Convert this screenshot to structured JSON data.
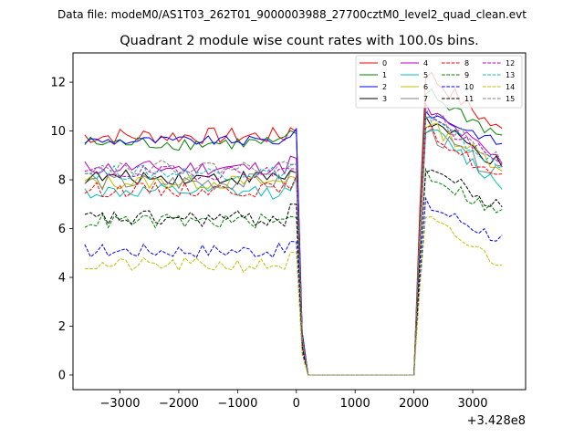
{
  "suptitle": "Data file: modeM0/AS1T03_262T01_9000003988_27700cztM0_level2_quad_clean.evt",
  "chart_data": {
    "type": "line",
    "title": "Quadrant 2 module wise count rates with 100.0s bins.",
    "xlabel": "",
    "ylabel": "",
    "x_offset_label": "+3.428e8",
    "xlim": [
      -3800,
      3900
    ],
    "ylim": [
      -0.6,
      13.2
    ],
    "xticks": [
      -3000,
      -2000,
      -1000,
      0,
      1000,
      2000,
      3000
    ],
    "xtick_labels": [
      "−3000",
      "−2000",
      "−1000",
      "0",
      "1000",
      "2000",
      "3000"
    ],
    "yticks": [
      0,
      2,
      4,
      6,
      8,
      10,
      12
    ],
    "ytick_labels": [
      "0",
      "2",
      "4",
      "6",
      "8",
      "10",
      "12"
    ],
    "legend_location": "top-right",
    "legend_columns": 4,
    "gap_start": 200,
    "gap_end": 2000,
    "x_start": -3600,
    "x_end": 3550,
    "bin_width": 100,
    "series": [
      {
        "name": "0",
        "color": "#ff0000",
        "dash": "solid",
        "pre": 9.8,
        "post_peak": 12.4,
        "post_end": 10.0,
        "noise": 0.35
      },
      {
        "name": "1",
        "color": "#008000",
        "dash": "solid",
        "pre": 9.5,
        "post_peak": 11.6,
        "post_end": 9.8,
        "noise": 0.3
      },
      {
        "name": "2",
        "color": "#0000ff",
        "dash": "solid",
        "pre": 9.6,
        "post_peak": 10.8,
        "post_end": 9.5,
        "noise": 0.2
      },
      {
        "name": "3",
        "color": "#000000",
        "dash": "solid",
        "pre": 8.1,
        "post_peak": 10.5,
        "post_end": 8.6,
        "noise": 0.3
      },
      {
        "name": "4",
        "color": "#bf00bf",
        "dash": "solid",
        "pre": 8.5,
        "post_peak": 10.9,
        "post_end": 8.8,
        "noise": 0.3
      },
      {
        "name": "5",
        "color": "#00bfbf",
        "dash": "solid",
        "pre": 7.5,
        "post_peak": 10.2,
        "post_end": 7.8,
        "noise": 0.3
      },
      {
        "name": "6",
        "color": "#bfbf00",
        "dash": "solid",
        "pre": 7.9,
        "post_peak": 10.3,
        "post_end": 8.6,
        "noise": 0.3
      },
      {
        "name": "7",
        "color": "#808080",
        "dash": "solid",
        "pre": 7.9,
        "post_peak": 10.0,
        "post_end": 8.2,
        "noise": 0.35
      },
      {
        "name": "8",
        "color": "#ff0000",
        "dash": "dashed",
        "pre": 7.6,
        "post_peak": 10.1,
        "post_end": 8.0,
        "noise": 0.3
      },
      {
        "name": "9",
        "color": "#008000",
        "dash": "dashed",
        "pre": 6.3,
        "post_peak": 8.3,
        "post_end": 6.6,
        "noise": 0.3
      },
      {
        "name": "10",
        "color": "#0000ff",
        "dash": "dashed",
        "pre": 5.1,
        "post_peak": 7.0,
        "post_end": 5.6,
        "noise": 0.3
      },
      {
        "name": "11",
        "color": "#000000",
        "dash": "dashed",
        "pre": 6.4,
        "post_peak": 8.6,
        "post_end": 6.8,
        "noise": 0.35
      },
      {
        "name": "12",
        "color": "#bf00bf",
        "dash": "dashed",
        "pre": 8.3,
        "post_peak": 10.7,
        "post_end": 8.6,
        "noise": 0.3
      },
      {
        "name": "13",
        "color": "#00bfbf",
        "dash": "dashed",
        "pre": 8.3,
        "post_peak": 10.6,
        "post_end": 8.5,
        "noise": 0.3
      },
      {
        "name": "14",
        "color": "#bfbf00",
        "dash": "dashed",
        "pre": 4.5,
        "post_peak": 6.4,
        "post_end": 4.6,
        "noise": 0.3
      },
      {
        "name": "15",
        "color": "#808080",
        "dash": "dashed",
        "pre": 8.5,
        "post_peak": 10.8,
        "post_end": 8.8,
        "noise": 0.3
      }
    ]
  }
}
